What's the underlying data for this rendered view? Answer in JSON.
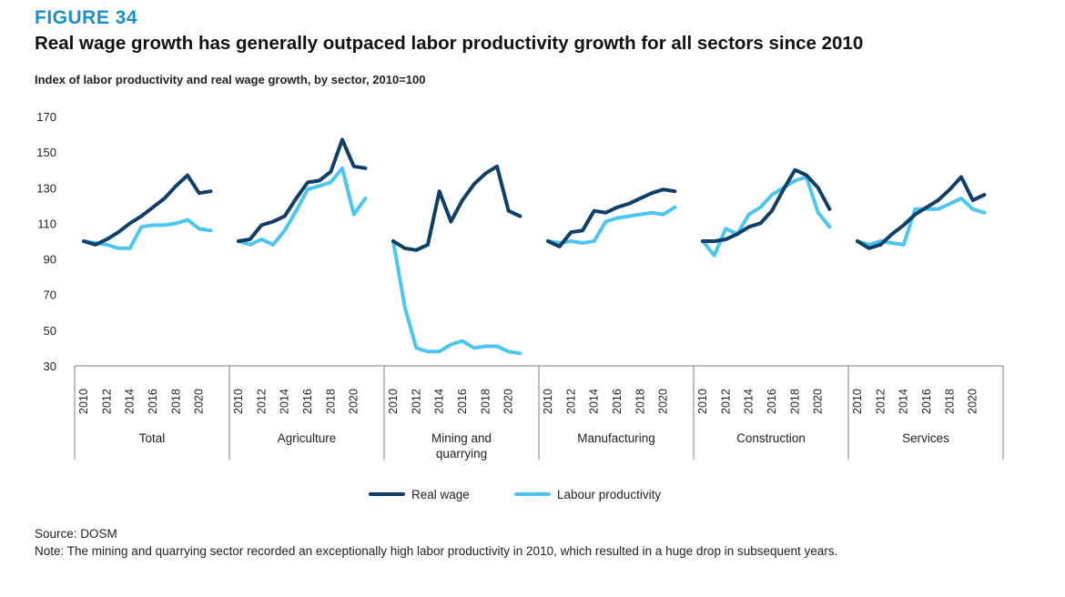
{
  "figure_label": "FIGURE 34",
  "title": "Real wage growth has generally outpaced labor productivity growth for all sectors since 2010",
  "subtitle": "Index of labor productivity and real wage growth, by sector, 2010=100",
  "footer": {
    "source": "Source: DOSM",
    "note": "Note: The mining and quarrying sector recorded an exceptionally high labor productivity in 2010, which resulted in a huge drop in subsequent years."
  },
  "colors": {
    "real_wage": "#0d3f68",
    "labour_productivity": "#4cc6ee",
    "axis": "#7f7f7f"
  },
  "chart_data": {
    "type": "line",
    "ylim": [
      30,
      170
    ],
    "yticks": [
      30,
      50,
      70,
      90,
      110,
      130,
      150,
      170
    ],
    "years": [
      2010,
      2011,
      2012,
      2013,
      2014,
      2015,
      2016,
      2017,
      2018,
      2019,
      2020,
      2021
    ],
    "year_tick_labels": [
      "2010",
      "2012",
      "2014",
      "2016",
      "2018",
      "2020"
    ],
    "legend": [
      "Real wage",
      "Labour productivity"
    ],
    "groups": [
      {
        "name": "Total",
        "real_wage": [
          100,
          98,
          101,
          105,
          110,
          114,
          119,
          124,
          131,
          137,
          127,
          128
        ],
        "labour_productivity": [
          100,
          99,
          98,
          96,
          96,
          108,
          109,
          109,
          110,
          112,
          107,
          106
        ]
      },
      {
        "name": "Agriculture",
        "real_wage": [
          100,
          101,
          109,
          111,
          114,
          124,
          133,
          134,
          139,
          157,
          142,
          141
        ],
        "labour_productivity": [
          100,
          98,
          101,
          98,
          106,
          117,
          129,
          131,
          133,
          141,
          115,
          124
        ]
      },
      {
        "name": "Mining and quarrying",
        "real_wage": [
          100,
          96,
          95,
          98,
          128,
          111,
          123,
          132,
          138,
          142,
          117,
          114
        ],
        "labour_productivity": [
          100,
          63,
          40,
          38,
          38,
          42,
          44,
          40,
          41,
          41,
          38,
          37
        ]
      },
      {
        "name": "Manufacturing",
        "real_wage": [
          100,
          97,
          105,
          106,
          117,
          116,
          119,
          121,
          124,
          127,
          129,
          128
        ],
        "labour_productivity": [
          100,
          99,
          100,
          99,
          100,
          111,
          113,
          114,
          115,
          116,
          115,
          119
        ]
      },
      {
        "name": "Construction",
        "real_wage": [
          100,
          100,
          101,
          104,
          108,
          110,
          117,
          129,
          140,
          137,
          130,
          118
        ],
        "labour_productivity": [
          100,
          92,
          107,
          104,
          115,
          119,
          126,
          130,
          134,
          136,
          116,
          108
        ]
      },
      {
        "name": "Services",
        "real_wage": [
          100,
          96,
          98,
          104,
          109,
          115,
          119,
          123,
          129,
          136,
          123,
          126
        ],
        "labour_productivity": [
          100,
          98,
          100,
          99,
          98,
          118,
          118,
          118,
          121,
          124,
          118,
          116
        ]
      }
    ]
  }
}
